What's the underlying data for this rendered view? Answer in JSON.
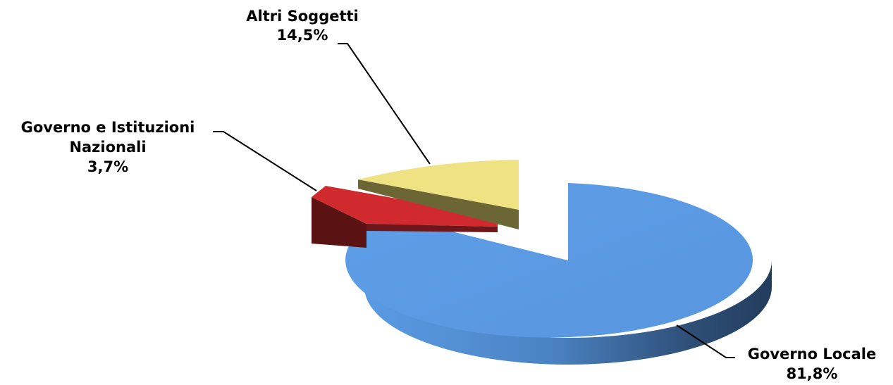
{
  "chart_data": {
    "type": "pie",
    "style": "3d-exploded",
    "slices": [
      {
        "label": "Governo Locale",
        "value": 81.8,
        "display": "81,8%",
        "color": "#5b9bd5",
        "side_dark": "#2c4a6e",
        "exploded": false
      },
      {
        "label": "Governo e Istituzioni Nazionali",
        "value": 3.7,
        "display": "3,7%",
        "color": "#c0272d",
        "side_dark": "#5a1112",
        "exploded": true
      },
      {
        "label": "Altri Soggetti",
        "value": 14.5,
        "display": "14,5%",
        "color": "#eee283",
        "side_dark": "#6b6634",
        "exploded": true
      }
    ]
  },
  "labels": {
    "governo_locale": {
      "line1": "Governo Locale",
      "line2": "81,8%"
    },
    "nazionali": {
      "line1": "Governo e Istituzioni",
      "line2": "Nazionali",
      "line3": "3,7%"
    },
    "altri": {
      "line1": "Altri Soggetti",
      "line2": "14,5%"
    }
  }
}
